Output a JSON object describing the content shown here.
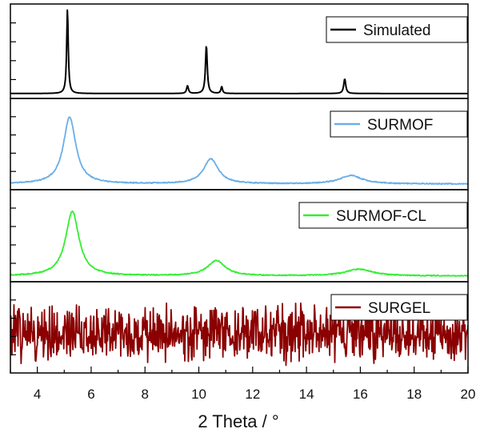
{
  "chart_data": {
    "type": "line",
    "layout": "stacked-panels",
    "xlabel": "2 Theta / °",
    "xlim": [
      3,
      20
    ],
    "x_ticks": [
      "4",
      "6",
      "8",
      "10",
      "12",
      "14",
      "16",
      "18",
      "20"
    ],
    "series": [
      {
        "name": "Simulated",
        "color": "#000000",
        "ylim": [
          0,
          1.0
        ],
        "baseline": 0.02,
        "noise": 0.0,
        "peaks": [
          {
            "x": 5.12,
            "height": 0.98,
            "width": 0.035
          },
          {
            "x": 9.58,
            "height": 0.09,
            "width": 0.04
          },
          {
            "x": 10.28,
            "height": 0.56,
            "width": 0.04
          },
          {
            "x": 10.85,
            "height": 0.08,
            "width": 0.035
          },
          {
            "x": 15.42,
            "height": 0.17,
            "width": 0.045
          }
        ]
      },
      {
        "name": "SURMOF",
        "color": "#6aaee8",
        "ylim": [
          0,
          1.0
        ],
        "baseline": 0.03,
        "noise": 0.012,
        "peaks": [
          {
            "x": 5.2,
            "height": 0.8,
            "width": 0.28
          },
          {
            "x": 10.45,
            "height": 0.3,
            "width": 0.33
          },
          {
            "x": 15.65,
            "height": 0.1,
            "width": 0.5
          }
        ]
      },
      {
        "name": "SURMOF-CL",
        "color": "#33ee33",
        "ylim": [
          0,
          1.0
        ],
        "baseline": 0.03,
        "noise": 0.012,
        "peaks": [
          {
            "x": 5.3,
            "height": 0.77,
            "width": 0.3
          },
          {
            "x": 10.65,
            "height": 0.18,
            "width": 0.4
          },
          {
            "x": 15.95,
            "height": 0.08,
            "width": 0.6
          }
        ]
      },
      {
        "name": "SURGEL",
        "color": "#8b0000",
        "ylim": [
          0,
          1.0
        ],
        "baseline": 0.44,
        "noise": 0.18,
        "peaks": []
      }
    ]
  }
}
